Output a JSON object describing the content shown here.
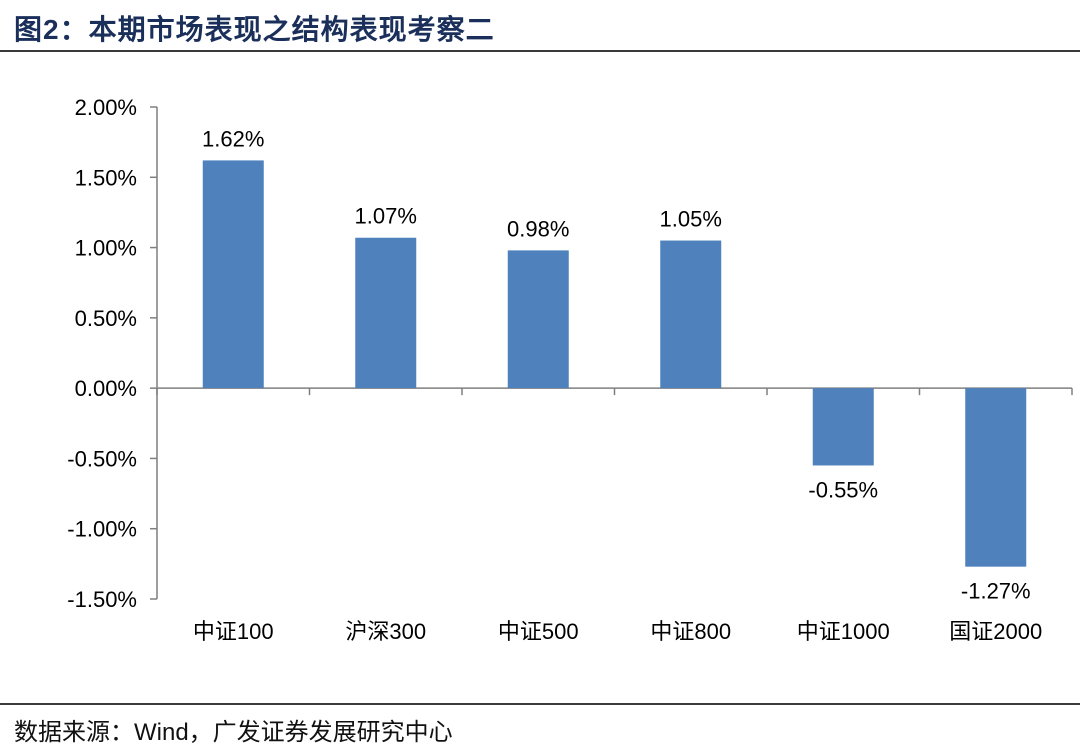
{
  "figure": {
    "title": "图2：本期市场表现之结构表现考察二",
    "source": "数据来源：Wind，广发证券发展研究中心"
  },
  "colors": {
    "bar": "#4f81bd",
    "axis": "#7f7f7f",
    "title": "#1a2f5a"
  },
  "chart_data": {
    "type": "bar",
    "title": "",
    "xlabel": "",
    "ylabel": "",
    "categories": [
      "中证100",
      "沪深300",
      "中证500",
      "中证800",
      "中证1000",
      "国证2000"
    ],
    "values": [
      1.62,
      1.07,
      0.98,
      1.05,
      -0.55,
      -1.27
    ],
    "data_labels": [
      "1.62%",
      "1.07%",
      "0.98%",
      "1.05%",
      "-0.55%",
      "-1.27%"
    ],
    "ylim": [
      -1.5,
      2.0
    ],
    "yticks": [
      2.0,
      1.5,
      1.0,
      0.5,
      0.0,
      -0.5,
      -1.0,
      -1.5
    ],
    "ytick_labels": [
      "2.00%",
      "1.50%",
      "1.00%",
      "0.50%",
      "0.00%",
      "-0.50%",
      "-1.00%",
      "-1.50%"
    ],
    "grid": false,
    "legend": "none"
  }
}
